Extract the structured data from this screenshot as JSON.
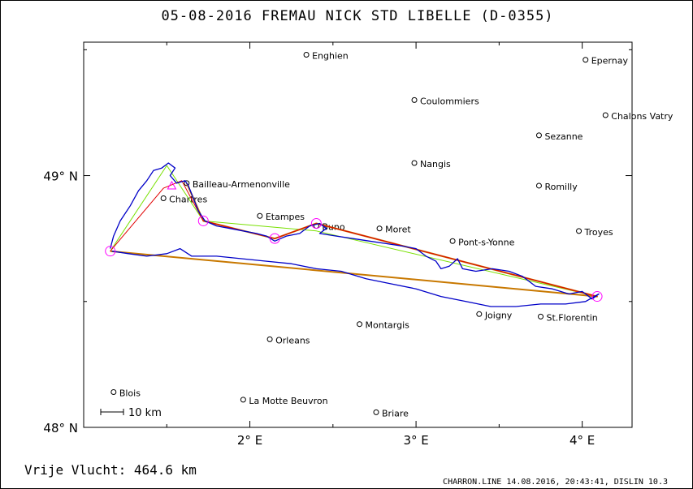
{
  "title": "05-08-2016   FREMAU NICK   STD LIBELLE (D-0355)",
  "scale_bar_label": "10 km",
  "distance_label": "Vrije Vlucht:  464.6 km",
  "footer": "CHARRON.LINE 14.08.2016, 20:43:41, DISLIN 10.3",
  "axes": {
    "lon_range": [
      1.0,
      4.3
    ],
    "lat_range": [
      48.0,
      49.53
    ],
    "x_ticks": [
      {
        "value": 2,
        "label": "2° E"
      },
      {
        "value": 3,
        "label": "3° E"
      },
      {
        "value": 4,
        "label": "4° E"
      }
    ],
    "y_ticks": [
      {
        "value": 48,
        "label": "48° N"
      },
      {
        "value": 49,
        "label": "49° N"
      }
    ]
  },
  "places": [
    {
      "name": "Enghien",
      "lon": 2.34,
      "lat": 49.48
    },
    {
      "name": "Epernay",
      "lon": 4.02,
      "lat": 49.46
    },
    {
      "name": "Coulommiers",
      "lon": 2.99,
      "lat": 49.3
    },
    {
      "name": "Chalons Vatry",
      "lon": 4.14,
      "lat": 49.24
    },
    {
      "name": "Sezanne",
      "lon": 3.74,
      "lat": 49.16
    },
    {
      "name": "Nangis",
      "lon": 2.99,
      "lat": 49.05
    },
    {
      "name": "Romilly",
      "lon": 3.74,
      "lat": 48.96
    },
    {
      "name": "Bailleau-Armenonville",
      "lon": 1.62,
      "lat": 48.97
    },
    {
      "name": "Chartres",
      "lon": 1.48,
      "lat": 48.91
    },
    {
      "name": "Etampes",
      "lon": 2.06,
      "lat": 48.84
    },
    {
      "name": "Buno",
      "lon": 2.4,
      "lat": 48.8
    },
    {
      "name": "Moret",
      "lon": 2.78,
      "lat": 48.79
    },
    {
      "name": "Troyes",
      "lon": 3.98,
      "lat": 48.78
    },
    {
      "name": "Pont-s-Yonne",
      "lon": 3.22,
      "lat": 48.74
    },
    {
      "name": "Joigny",
      "lon": 3.38,
      "lat": 48.45
    },
    {
      "name": "St.Florentin",
      "lon": 3.75,
      "lat": 48.44
    },
    {
      "name": "Montargis",
      "lon": 2.66,
      "lat": 48.41
    },
    {
      "name": "Orleans",
      "lon": 2.12,
      "lat": 48.35
    },
    {
      "name": "Blois",
      "lon": 1.18,
      "lat": 48.14
    },
    {
      "name": "La Motte Beuvron",
      "lon": 1.96,
      "lat": 48.11
    },
    {
      "name": "Briare",
      "lon": 2.76,
      "lat": 48.06
    }
  ],
  "turnpoints": [
    {
      "lon": 1.16,
      "lat": 48.7
    },
    {
      "lon": 1.72,
      "lat": 48.82
    },
    {
      "lon": 2.15,
      "lat": 48.75
    },
    {
      "lon": 2.4,
      "lat": 48.81
    },
    {
      "lon": 4.09,
      "lat": 48.52
    }
  ],
  "start_marker": {
    "lon": 1.53,
    "lat": 48.96
  },
  "task_red": [
    {
      "lon": 1.16,
      "lat": 48.7
    },
    {
      "lon": 1.48,
      "lat": 48.95
    },
    {
      "lon": 1.59,
      "lat": 48.98
    },
    {
      "lon": 1.72,
      "lat": 48.82
    },
    {
      "lon": 2.15,
      "lat": 48.75
    },
    {
      "lon": 2.4,
      "lat": 48.81
    },
    {
      "lon": 4.09,
      "lat": 48.52
    }
  ],
  "task_orange": [
    {
      "lon": 1.62,
      "lat": 48.97
    },
    {
      "lon": 1.72,
      "lat": 48.82
    },
    {
      "lon": 2.15,
      "lat": 48.75
    },
    {
      "lon": 2.4,
      "lat": 48.81
    },
    {
      "lon": 4.09,
      "lat": 48.52
    },
    {
      "lon": 1.16,
      "lat": 48.7
    }
  ],
  "task_green": [
    {
      "lon": 1.16,
      "lat": 48.7
    },
    {
      "lon": 1.5,
      "lat": 49.04
    },
    {
      "lon": 1.72,
      "lat": 48.82
    },
    {
      "lon": 2.4,
      "lat": 48.78
    },
    {
      "lon": 4.09,
      "lat": 48.52
    }
  ],
  "flight_track": [
    {
      "lon": 1.16,
      "lat": 48.71
    },
    {
      "lon": 1.18,
      "lat": 48.76
    },
    {
      "lon": 1.22,
      "lat": 48.82
    },
    {
      "lon": 1.28,
      "lat": 48.88
    },
    {
      "lon": 1.33,
      "lat": 48.94
    },
    {
      "lon": 1.38,
      "lat": 48.98
    },
    {
      "lon": 1.42,
      "lat": 49.02
    },
    {
      "lon": 1.47,
      "lat": 49.03
    },
    {
      "lon": 1.51,
      "lat": 49.05
    },
    {
      "lon": 1.55,
      "lat": 49.03
    },
    {
      "lon": 1.52,
      "lat": 49.0
    },
    {
      "lon": 1.56,
      "lat": 48.97
    },
    {
      "lon": 1.61,
      "lat": 48.98
    },
    {
      "lon": 1.63,
      "lat": 48.96
    },
    {
      "lon": 1.66,
      "lat": 48.91
    },
    {
      "lon": 1.69,
      "lat": 48.86
    },
    {
      "lon": 1.73,
      "lat": 48.82
    },
    {
      "lon": 1.8,
      "lat": 48.8
    },
    {
      "lon": 1.88,
      "lat": 48.79
    },
    {
      "lon": 1.96,
      "lat": 48.78
    },
    {
      "lon": 2.04,
      "lat": 48.77
    },
    {
      "lon": 2.1,
      "lat": 48.76
    },
    {
      "lon": 2.15,
      "lat": 48.74
    },
    {
      "lon": 2.22,
      "lat": 48.76
    },
    {
      "lon": 2.3,
      "lat": 48.77
    },
    {
      "lon": 2.36,
      "lat": 48.8
    },
    {
      "lon": 2.42,
      "lat": 48.81
    },
    {
      "lon": 2.46,
      "lat": 48.79
    },
    {
      "lon": 2.42,
      "lat": 48.77
    },
    {
      "lon": 2.52,
      "lat": 48.76
    },
    {
      "lon": 2.62,
      "lat": 48.75
    },
    {
      "lon": 2.72,
      "lat": 48.74
    },
    {
      "lon": 2.82,
      "lat": 48.73
    },
    {
      "lon": 2.92,
      "lat": 48.72
    },
    {
      "lon": 3.0,
      "lat": 48.71
    },
    {
      "lon": 3.06,
      "lat": 48.68
    },
    {
      "lon": 3.12,
      "lat": 48.66
    },
    {
      "lon": 3.15,
      "lat": 48.63
    },
    {
      "lon": 3.2,
      "lat": 48.64
    },
    {
      "lon": 3.25,
      "lat": 48.67
    },
    {
      "lon": 3.28,
      "lat": 48.63
    },
    {
      "lon": 3.36,
      "lat": 48.62
    },
    {
      "lon": 3.46,
      "lat": 48.63
    },
    {
      "lon": 3.56,
      "lat": 48.62
    },
    {
      "lon": 3.64,
      "lat": 48.6
    },
    {
      "lon": 3.72,
      "lat": 48.56
    },
    {
      "lon": 3.82,
      "lat": 48.55
    },
    {
      "lon": 3.92,
      "lat": 48.53
    },
    {
      "lon": 4.0,
      "lat": 48.54
    },
    {
      "lon": 4.06,
      "lat": 48.51
    },
    {
      "lon": 4.1,
      "lat": 48.53
    },
    {
      "lon": 4.02,
      "lat": 48.5
    },
    {
      "lon": 3.9,
      "lat": 48.49
    },
    {
      "lon": 3.75,
      "lat": 48.49
    },
    {
      "lon": 3.6,
      "lat": 48.48
    },
    {
      "lon": 3.45,
      "lat": 48.48
    },
    {
      "lon": 3.3,
      "lat": 48.5
    },
    {
      "lon": 3.15,
      "lat": 48.52
    },
    {
      "lon": 3.0,
      "lat": 48.55
    },
    {
      "lon": 2.85,
      "lat": 48.57
    },
    {
      "lon": 2.7,
      "lat": 48.59
    },
    {
      "lon": 2.55,
      "lat": 48.62
    },
    {
      "lon": 2.4,
      "lat": 48.63
    },
    {
      "lon": 2.25,
      "lat": 48.65
    },
    {
      "lon": 2.1,
      "lat": 48.66
    },
    {
      "lon": 1.95,
      "lat": 48.67
    },
    {
      "lon": 1.8,
      "lat": 48.68
    },
    {
      "lon": 1.65,
      "lat": 48.68
    },
    {
      "lon": 1.58,
      "lat": 48.71
    },
    {
      "lon": 1.5,
      "lat": 48.69
    },
    {
      "lon": 1.38,
      "lat": 48.68
    },
    {
      "lon": 1.27,
      "lat": 48.69
    },
    {
      "lon": 1.17,
      "lat": 48.7
    }
  ],
  "colors": {
    "track": "#0000c8",
    "task_red": "#e00000",
    "task_orange": "#c87800",
    "task_green": "#78e000",
    "turnpoint": "#ff00ff",
    "frame": "#000000"
  }
}
